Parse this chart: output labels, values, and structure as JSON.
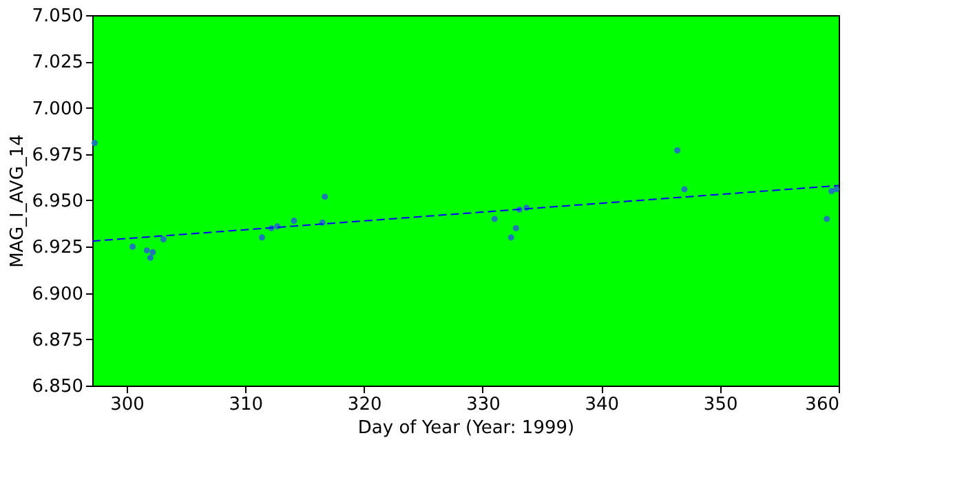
{
  "chart_data": {
    "type": "scatter",
    "xlabel": "Day of Year (Year: 1999)",
    "ylabel": "MAG_I_AVG_14",
    "xlim": [
      297.1,
      360
    ],
    "xticks": [
      300,
      310,
      320,
      330,
      340,
      350,
      360
    ],
    "ylim": [
      6.85,
      7.05
    ],
    "yticks": [
      {
        "value": 6.85,
        "label": "6.850"
      },
      {
        "value": 6.875,
        "label": "6.875"
      },
      {
        "value": 6.9,
        "label": "6.900"
      },
      {
        "value": 6.925,
        "label": "6.925"
      },
      {
        "value": 6.95,
        "label": "6.950"
      },
      {
        "value": 6.975,
        "label": "6.975"
      },
      {
        "value": 7.0,
        "label": "7.000"
      },
      {
        "value": 7.025,
        "label": "7.025"
      },
      {
        "value": 7.05,
        "label": "7.050"
      }
    ],
    "grid": false,
    "series": [
      {
        "color": "#1f77b4",
        "marker": "circle",
        "x": [
          297.3,
          300.5,
          301.7,
          301.8,
          301.9,
          302.0,
          302.2,
          303.1,
          311.4,
          312.2,
          312.7,
          314.1,
          316.5,
          316.7,
          331.0,
          332.4,
          332.8,
          333.1,
          333.7,
          346.4,
          347.0,
          359.0,
          359.4,
          359.8
        ],
        "values": [
          6.981,
          6.925,
          6.923,
          null,
          null,
          6.919,
          6.922,
          6.929,
          6.93,
          6.935,
          6.936,
          6.939,
          6.938,
          6.952,
          6.94,
          6.93,
          6.935,
          6.945,
          6.946,
          6.977,
          6.956,
          6.94,
          6.955,
          6.956
        ]
      },
      {
        "type": "line",
        "color": "#0000ff",
        "line_style": "dashed",
        "marker": "none",
        "x": [
          297.1,
          360
        ],
        "values": [
          6.928,
          6.958
        ]
      }
    ]
  }
}
